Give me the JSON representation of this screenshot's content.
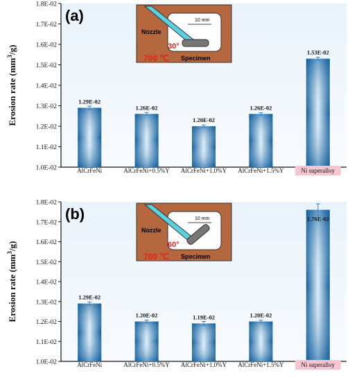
{
  "chart_data": [
    {
      "type": "bar",
      "panel_label": "(a)",
      "ylabel_main": "Erosion rate (mm",
      "ylabel_sup": "3",
      "ylabel_tail": "/g)",
      "ylim": [
        0.01,
        0.018
      ],
      "yticks": [
        0.01,
        0.011,
        0.012,
        0.013,
        0.014,
        0.015,
        0.016,
        0.017,
        0.018
      ],
      "ytick_labels": [
        "1.0E-02",
        "1.1E-02",
        "1.2E-02",
        "1.3E-02",
        "1.4E-02",
        "1.5E-02",
        "1.6E-02",
        "1.7E-02",
        "1.8E-02"
      ],
      "categories": [
        "AlCrFeNi",
        "AlCrFeNi+0.5%Y",
        "AlCrFeNi+1.0%Y",
        "AlCrFeNi+1.5%Y",
        "Ni superalloy"
      ],
      "values": [
        0.0129,
        0.0126,
        0.012,
        0.0126,
        0.0153
      ],
      "errors": [
        8e-05,
        7e-05,
        6e-05,
        6e-05,
        7e-05
      ],
      "value_labels": [
        "1.29E-02",
        "1.26E-02",
        "1.20E-02",
        "1.26E-02",
        "1.53E-02"
      ],
      "highlight_category": "Ni superalloy",
      "highlight_color": "#f6c6d3",
      "bar_color_dark": "#0e5d9c",
      "bar_color_light": "#dcedf8",
      "inset": {
        "nozzle": "Nozzle",
        "dim": "10 mm",
        "angle": "30°",
        "temp": "700 ℃",
        "specimen": "Specimen",
        "box_color": "#b5673e"
      }
    },
    {
      "type": "bar",
      "panel_label": "(b)",
      "ylabel_main": "Erosion rate (mm",
      "ylabel_sup": "3",
      "ylabel_tail": "/g)",
      "ylim": [
        0.01,
        0.018
      ],
      "yticks": [
        0.01,
        0.011,
        0.012,
        0.013,
        0.014,
        0.015,
        0.016,
        0.017,
        0.018
      ],
      "ytick_labels": [
        "1.0E-02",
        "1.1E-02",
        "1.2E-02",
        "1.3E-02",
        "1.4E-02",
        "1.5E-02",
        "1.6E-02",
        "1.7E-02",
        "1.8E-02"
      ],
      "categories": [
        "AlCrFeNi",
        "AlCrFeNi+0.5%Y",
        "AlCrFeNi+1.0%Y",
        "AlCrFeNi+1.5%Y",
        "Ni superalloy"
      ],
      "values": [
        0.0129,
        0.012,
        0.0119,
        0.012,
        0.0176
      ],
      "errors": [
        8e-05,
        7e-05,
        0.0001,
        6e-05,
        0.0003
      ],
      "value_labels": [
        "1.29E-02",
        "1.20E-02",
        "1.19E-02",
        "1.20E-02",
        "1.76E-02"
      ],
      "highlight_category": "Ni superalloy",
      "highlight_color": "#f6c6d3",
      "bar_color_dark": "#0e5d9c",
      "bar_color_light": "#dcedf8",
      "inset": {
        "nozzle": "Nozzle",
        "dim": "10 mm",
        "angle": "60°",
        "temp": "700 ℃",
        "specimen": "Specimen",
        "box_color": "#b5673e"
      }
    }
  ]
}
